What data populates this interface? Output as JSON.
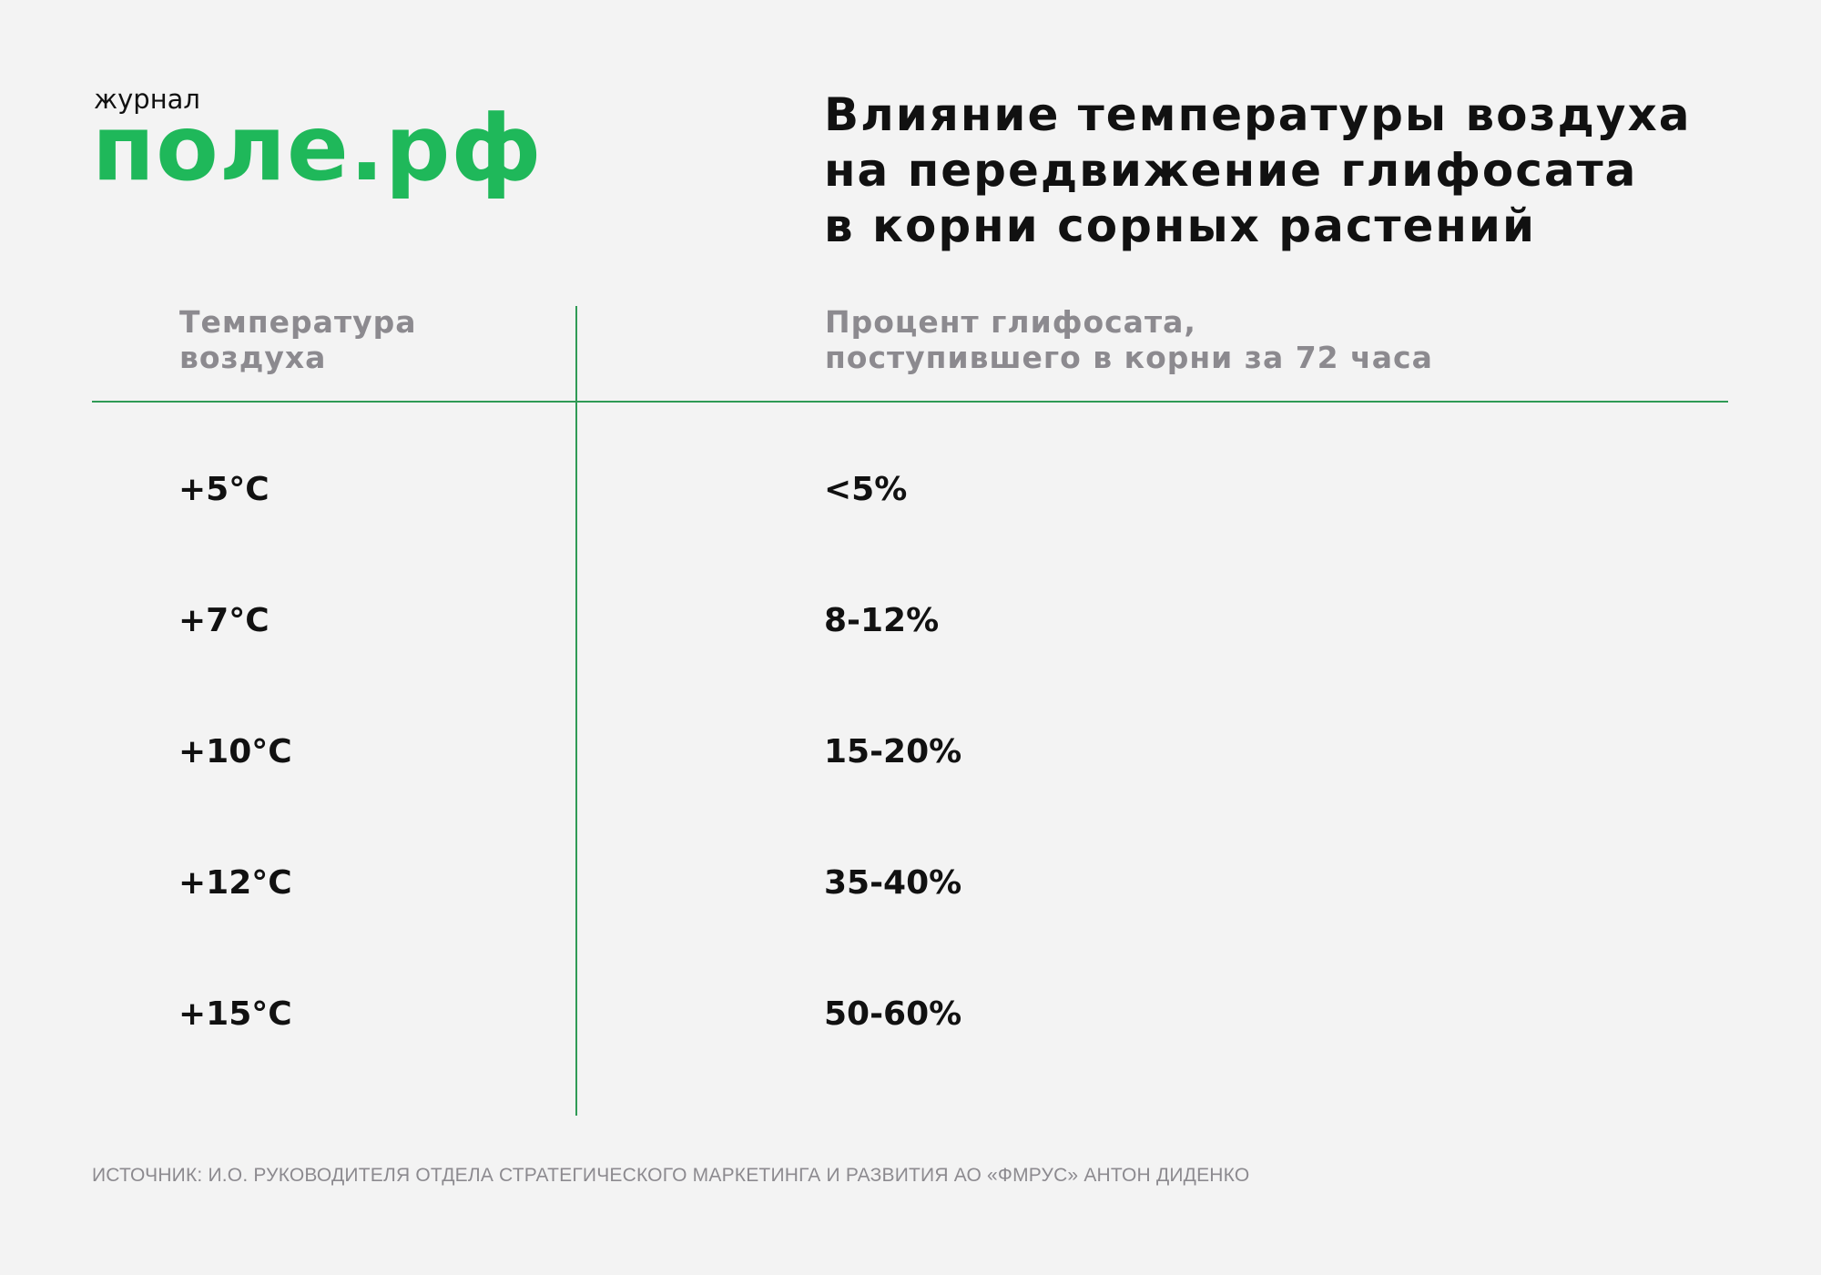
{
  "logo": {
    "small_text": "журнал",
    "big_text": "поле.рф",
    "color": "#1fb85a"
  },
  "chart_data": {
    "type": "table",
    "title_lines": [
      "Влияние температуры воздуха",
      "на передвижение глифосата",
      "в корни сорных растений"
    ],
    "columns": [
      {
        "header_lines": [
          "Температура",
          "воздуха"
        ]
      },
      {
        "header_lines": [
          "Процент глифосата,",
          "поступившего в корни за 72 часа"
        ]
      }
    ],
    "rows": [
      {
        "temperature": "+5°C",
        "percent": "<5%"
      },
      {
        "temperature": "+7°C",
        "percent": "8-12%"
      },
      {
        "temperature": "+10°C",
        "percent": "15-20%"
      },
      {
        "temperature": "+12°C",
        "percent": "35-40%"
      },
      {
        "temperature": "+15°C",
        "percent": "50-60%"
      }
    ],
    "rule_color": "#2f9a55",
    "header_color": "#8c8a8f"
  },
  "source": "ИСТОЧНИК: И.О. РУКОВОДИТЕЛЯ ОТДЕЛА СТРАТЕГИЧЕСКОГО МАРКЕТИНГА И РАЗВИТИЯ АО «ФМРУС» АНТОН ДИДЕНКО"
}
